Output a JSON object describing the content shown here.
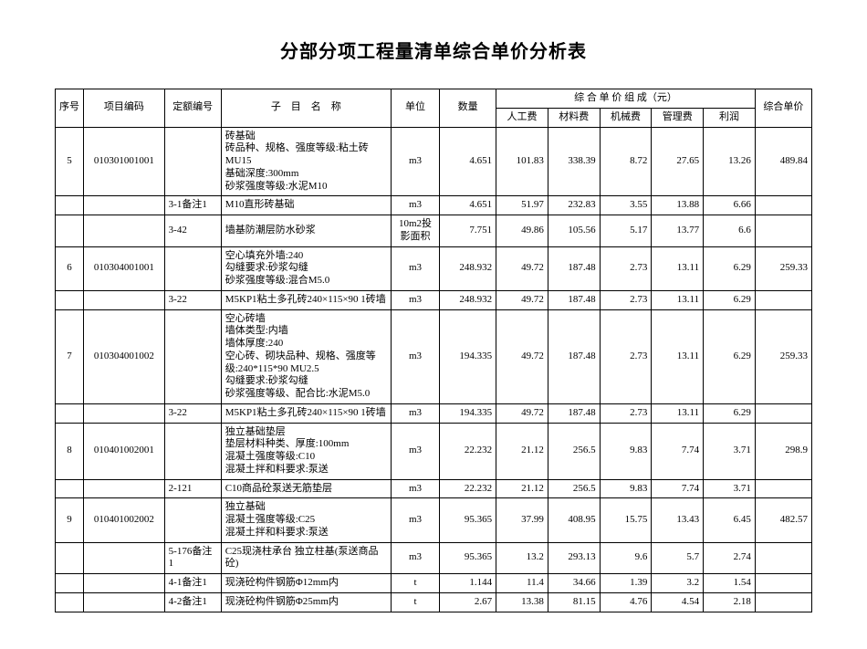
{
  "title": "分部分项工程量清单综合单价分析表",
  "headers": {
    "seq": "序号",
    "code": "项目编码",
    "quota": "定额编号",
    "name": "子　目　名　称",
    "unit": "单位",
    "qty": "数量",
    "group": "综 合 单 价 组 成（元）",
    "labor": "人工费",
    "material": "材料费",
    "machine": "机械费",
    "mgmt": "管理费",
    "profit": "利润",
    "total": "综合单价"
  },
  "rows": [
    {
      "seq": "5",
      "code": "010301001001",
      "quota": "",
      "name": "砖基础\n砖品种、规格、强度等级:粘土砖MU15\n基础深度:300mm\n砂浆强度等级:水泥M10",
      "unit": "m3",
      "qty": "4.651",
      "labor": "101.83",
      "material": "338.39",
      "machine": "8.72",
      "mgmt": "27.65",
      "profit": "13.26",
      "total": "489.84"
    },
    {
      "seq": "",
      "code": "",
      "quota": "3-1备注1",
      "name": "M10直形砖基础",
      "unit": "m3",
      "qty": "4.651",
      "labor": "51.97",
      "material": "232.83",
      "machine": "3.55",
      "mgmt": "13.88",
      "profit": "6.66",
      "total": ""
    },
    {
      "seq": "",
      "code": "",
      "quota": "3-42",
      "name": "墙基防潮层防水砂浆",
      "unit": "10m2投影面积",
      "qty": "7.751",
      "labor": "49.86",
      "material": "105.56",
      "machine": "5.17",
      "mgmt": "13.77",
      "profit": "6.6",
      "total": ""
    },
    {
      "seq": "6",
      "code": "010304001001",
      "quota": "",
      "name": "空心填充外墙:240\n勾缝要求:砂浆勾缝\n砂浆强度等级:混合M5.0",
      "unit": "m3",
      "qty": "248.932",
      "labor": "49.72",
      "material": "187.48",
      "machine": "2.73",
      "mgmt": "13.11",
      "profit": "6.29",
      "total": "259.33"
    },
    {
      "seq": "",
      "code": "",
      "quota": "3-22",
      "name": "M5KP1粘土多孔砖240×115×90 1砖墙",
      "unit": "m3",
      "qty": "248.932",
      "labor": "49.72",
      "material": "187.48",
      "machine": "2.73",
      "mgmt": "13.11",
      "profit": "6.29",
      "total": ""
    },
    {
      "seq": "7",
      "code": "010304001002",
      "quota": "",
      "name": "空心砖墙\n墙体类型:内墙\n墙体厚度:240\n空心砖、砌块品种、规格、强度等级:240*115*90 MU2.5\n勾缝要求:砂浆勾缝\n砂浆强度等级、配合比:水泥M5.0",
      "unit": "m3",
      "qty": "194.335",
      "labor": "49.72",
      "material": "187.48",
      "machine": "2.73",
      "mgmt": "13.11",
      "profit": "6.29",
      "total": "259.33"
    },
    {
      "seq": "",
      "code": "",
      "quota": "3-22",
      "name": "M5KP1粘土多孔砖240×115×90 1砖墙",
      "unit": "m3",
      "qty": "194.335",
      "labor": "49.72",
      "material": "187.48",
      "machine": "2.73",
      "mgmt": "13.11",
      "profit": "6.29",
      "total": ""
    },
    {
      "seq": "8",
      "code": "010401002001",
      "quota": "",
      "name": "独立基础垫层\n垫层材料种类、厚度:100mm\n混凝土强度等级:C10\n混凝土拌和料要求:泵送",
      "unit": "m3",
      "qty": "22.232",
      "labor": "21.12",
      "material": "256.5",
      "machine": "9.83",
      "mgmt": "7.74",
      "profit": "3.71",
      "total": "298.9"
    },
    {
      "seq": "",
      "code": "",
      "quota": "2-121",
      "name": "C10商品砼泵送无筋垫层",
      "unit": "m3",
      "qty": "22.232",
      "labor": "21.12",
      "material": "256.5",
      "machine": "9.83",
      "mgmt": "7.74",
      "profit": "3.71",
      "total": ""
    },
    {
      "seq": "9",
      "code": "010401002002",
      "quota": "",
      "name": "独立基础\n混凝土强度等级:C25\n混凝土拌和料要求:泵送",
      "unit": "m3",
      "qty": "95.365",
      "labor": "37.99",
      "material": "408.95",
      "machine": "15.75",
      "mgmt": "13.43",
      "profit": "6.45",
      "total": "482.57"
    },
    {
      "seq": "",
      "code": "",
      "quota": "5-176备注1",
      "name": "C25现浇柱承台 独立柱基(泵送商品砼)",
      "unit": "m3",
      "qty": "95.365",
      "labor": "13.2",
      "material": "293.13",
      "machine": "9.6",
      "mgmt": "5.7",
      "profit": "2.74",
      "total": ""
    },
    {
      "seq": "",
      "code": "",
      "quota": "4-1备注1",
      "name": "现浇砼构件钢筋Φ12mm内",
      "unit": "t",
      "qty": "1.144",
      "labor": "11.4",
      "material": "34.66",
      "machine": "1.39",
      "mgmt": "3.2",
      "profit": "1.54",
      "total": ""
    },
    {
      "seq": "",
      "code": "",
      "quota": "4-2备注1",
      "name": "现浇砼构件钢筋Φ25mm内",
      "unit": "t",
      "qty": "2.67",
      "labor": "13.38",
      "material": "81.15",
      "machine": "4.76",
      "mgmt": "4.54",
      "profit": "2.18",
      "total": ""
    }
  ]
}
